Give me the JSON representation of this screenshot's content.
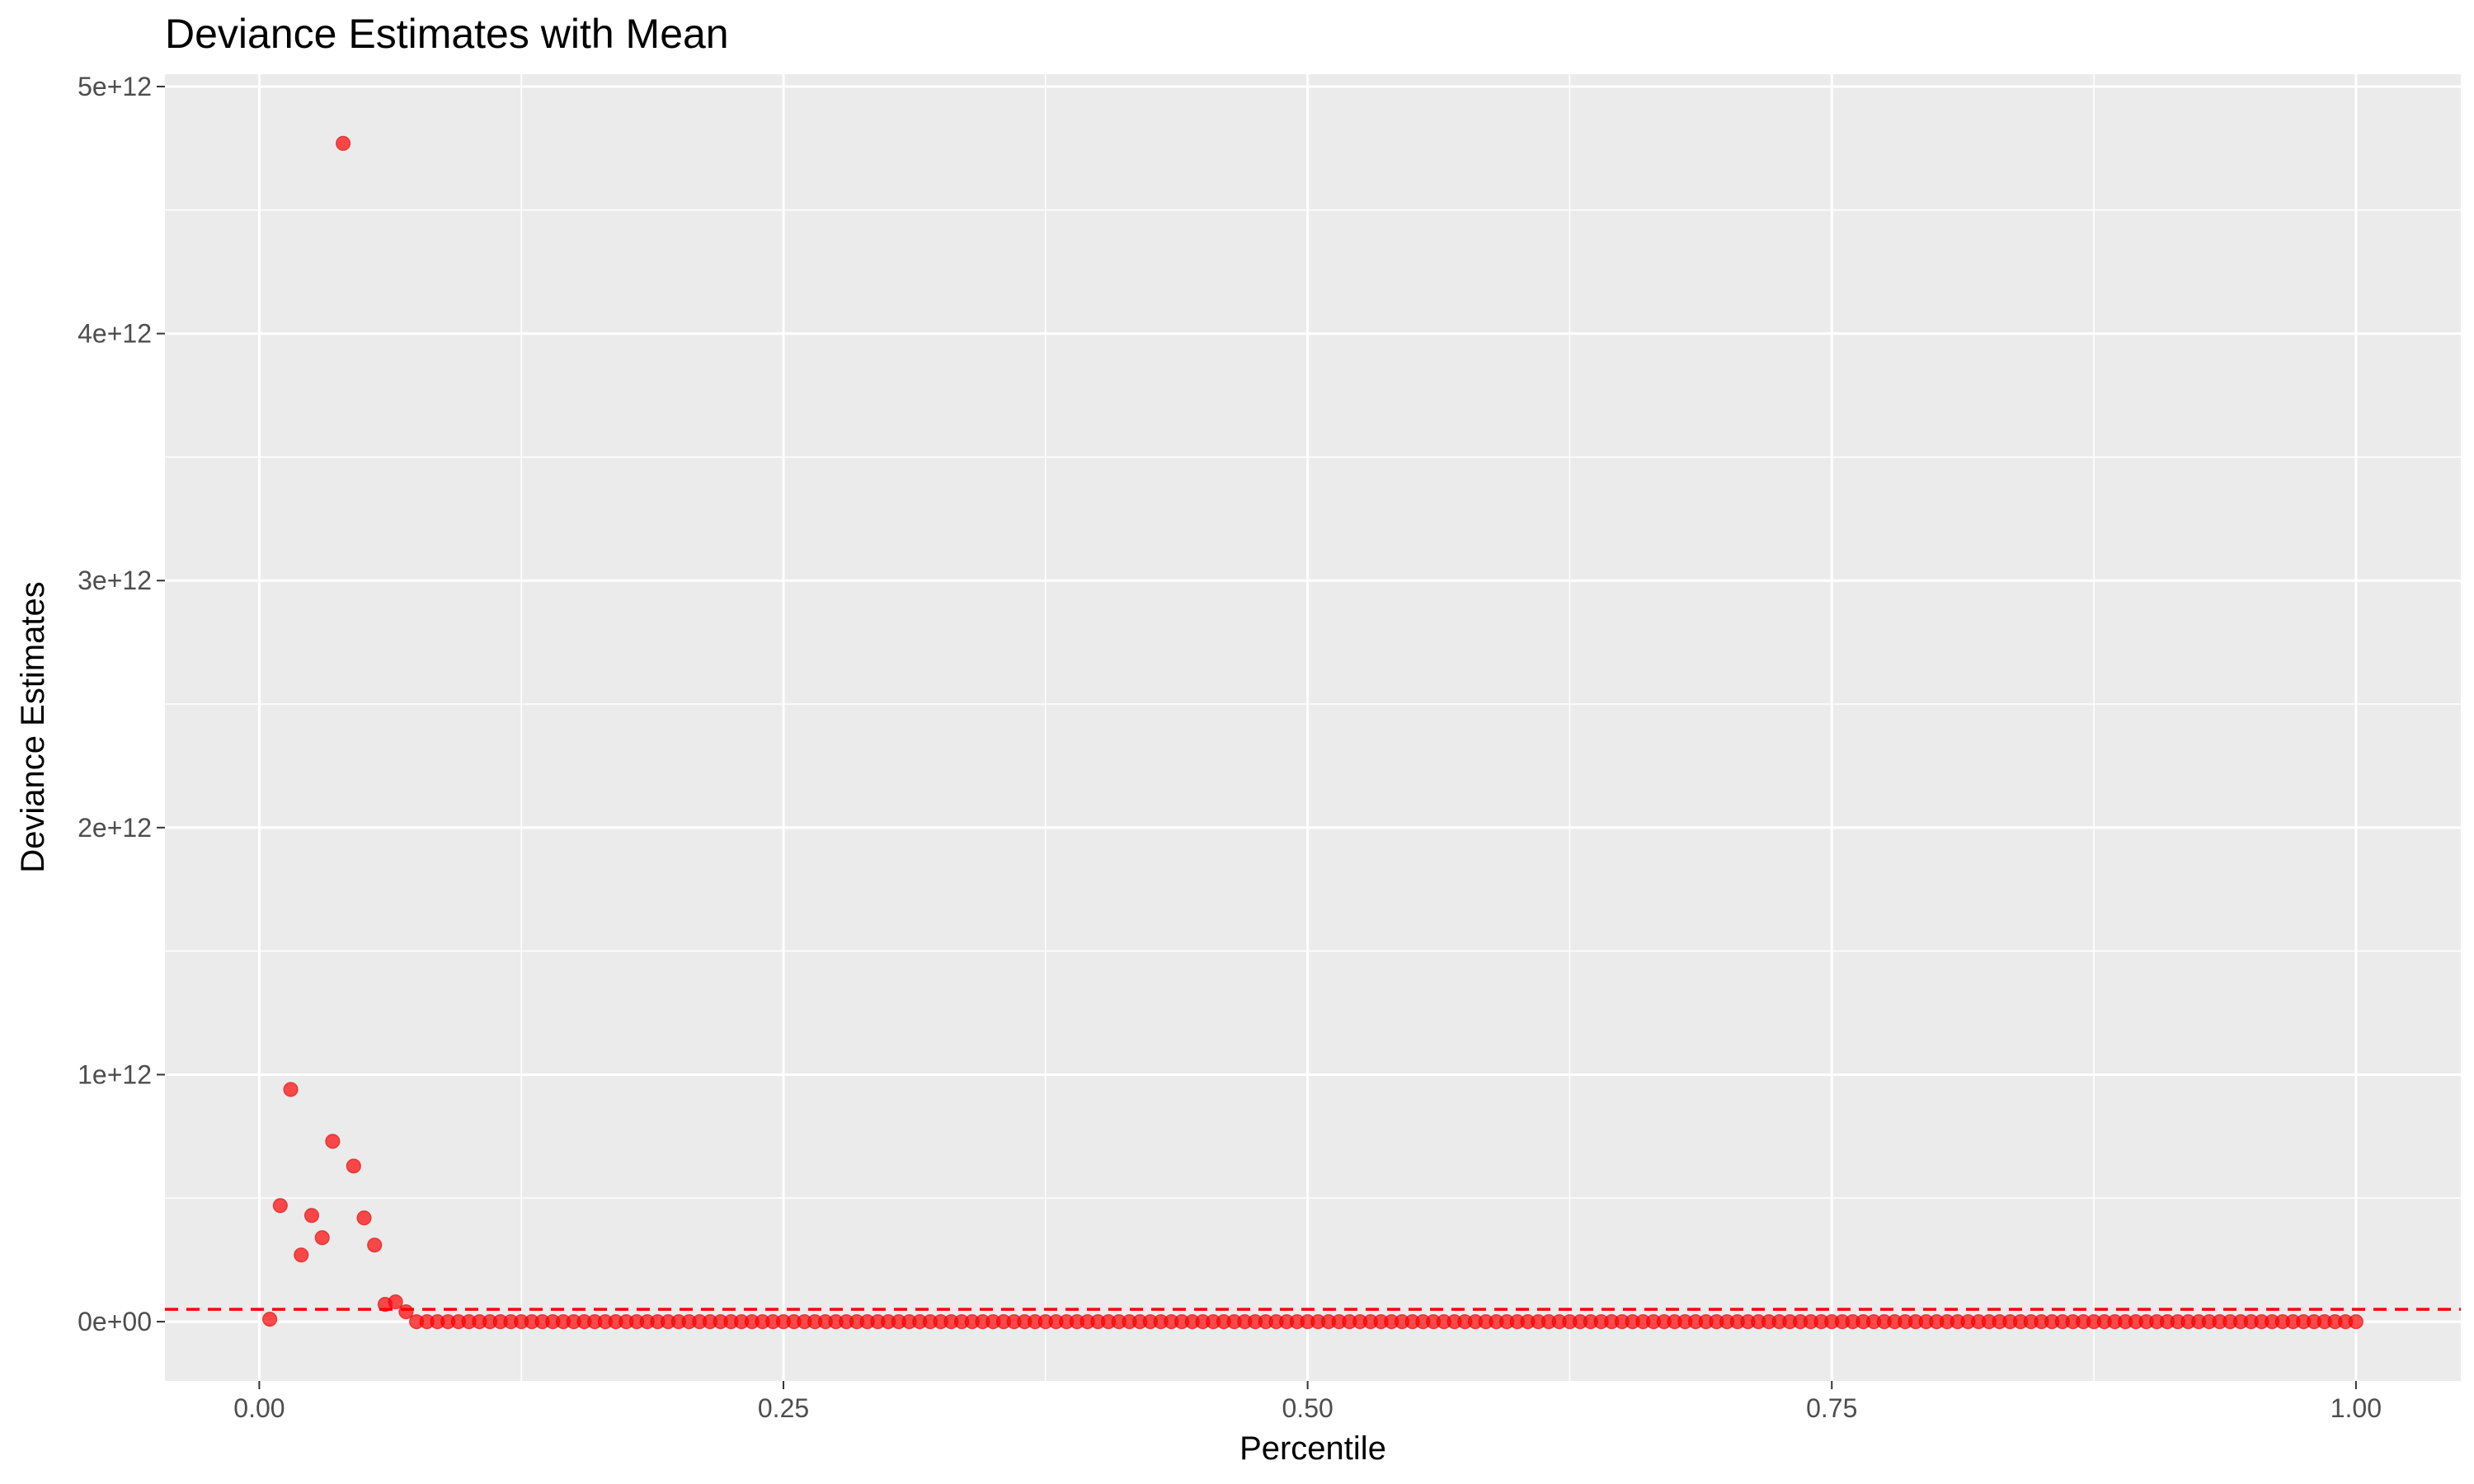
{
  "chart_data": {
    "type": "scatter",
    "title": "Deviance Estimates with Mean",
    "xlabel": "Percentile",
    "ylabel": "Deviance Estimates",
    "xlim": [
      -0.045,
      1.05
    ],
    "ylim": [
      -240000000000,
      5050000000000
    ],
    "x_ticks": [
      0,
      0.25,
      0.5,
      0.75,
      1
    ],
    "x_tick_labels": [
      "0.00",
      "0.25",
      "0.50",
      "0.75",
      "1.00"
    ],
    "y_ticks": [
      0,
      1000000000000,
      2000000000000,
      3000000000000,
      4000000000000,
      5000000000000
    ],
    "y_tick_labels": [
      "0e+00",
      "1e+12",
      "2e+12",
      "3e+12",
      "4e+12",
      "5e+12"
    ],
    "grid": true,
    "point_color": "#ff0000",
    "point_alpha": 0.7,
    "reference_line": {
      "style": "dashed",
      "color": "#ff0000",
      "y": 50000000000
    },
    "series": [
      {
        "x_start": 0.005,
        "x_step": 0.005,
        "y_leading": [
          10000000000,
          470000000000,
          940000000000,
          270000000000,
          430000000000,
          340000000000,
          730000000000,
          4770000000000,
          630000000000,
          420000000000,
          310000000000,
          70000000000,
          80000000000,
          40000000000
        ],
        "y_rest": 0,
        "count": 200
      }
    ]
  }
}
